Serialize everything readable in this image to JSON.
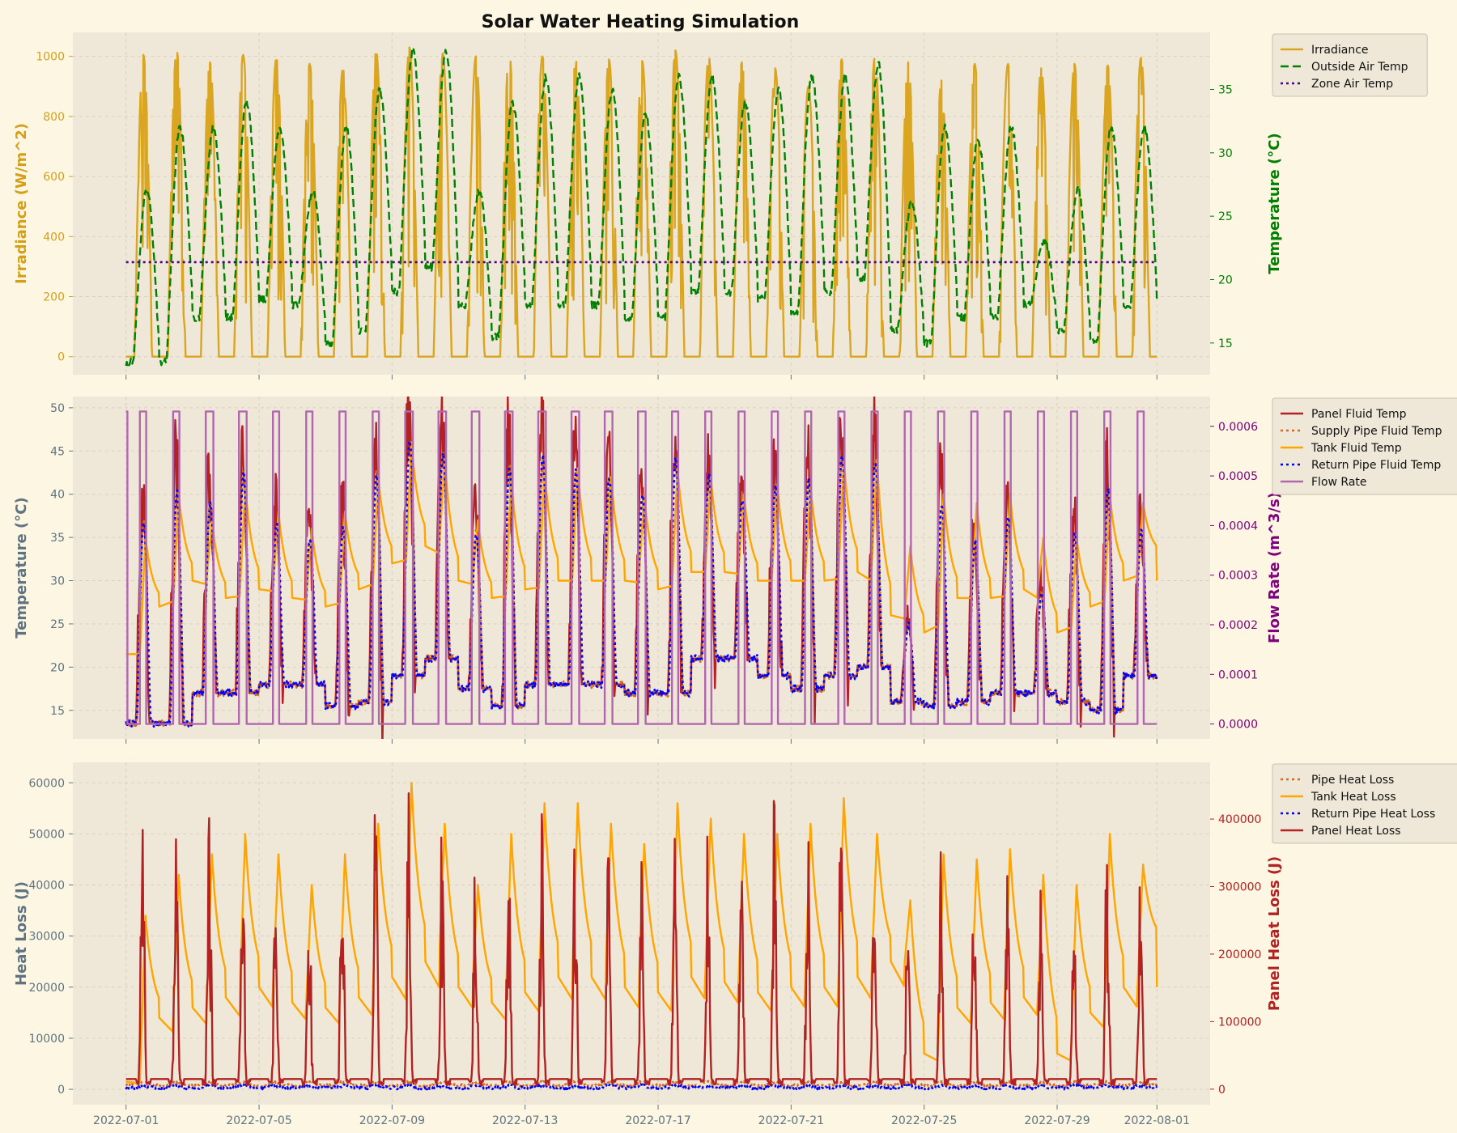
{
  "chart_data": {
    "title": "Solar Water Heating Simulation",
    "xtick_labels": [
      "2022-07-01",
      "2022-07-05",
      "2022-07-09",
      "2022-07-13",
      "2022-07-17",
      "2022-07-21",
      "2022-07-25",
      "2022-07-29",
      "2022-08-01"
    ],
    "xtick_days": [
      0,
      4,
      8,
      12,
      16,
      20,
      24,
      28,
      31
    ],
    "xlim_days": [
      -1.6,
      32.6
    ],
    "panels": [
      {
        "type": "line",
        "left_axis": {
          "label": "Irradiance (W/m^2)",
          "color": "#d4a017",
          "ylim": [
            -60,
            1080
          ],
          "ticks": [
            0,
            200,
            400,
            600,
            800,
            1000
          ]
        },
        "right_axis": {
          "label": "Temperature (°C)",
          "color": "#008000",
          "ylim": [
            12.5,
            39.5
          ],
          "ticks": [
            15,
            20,
            25,
            30,
            35
          ]
        },
        "series": [
          {
            "name": "Irradiance",
            "axis": "left",
            "color": "#daa520",
            "dash": "solid",
            "kind": "irradiance",
            "peaks": [
              1005,
              1020,
              980,
              1005,
              995,
              975,
              960,
              1015,
              1030,
              1010,
              1000,
              1015,
              1000,
              990,
              990,
              985,
              1020,
              1000,
              980,
              960,
              900,
              990,
              1000,
              980,
              920,
              975,
              975,
              960,
              975,
              970,
              995
            ]
          },
          {
            "name": "Outside Air Temp",
            "axis": "right",
            "color": "#008000",
            "dash": "dashed",
            "kind": "outside",
            "highs": [
              27,
              32,
              32,
              34,
              32,
              27,
              32,
              35,
              38,
              38,
              27,
              34,
              36,
              36,
              35,
              33,
              36,
              36,
              34,
              35,
              36,
              36,
              37,
              26,
              32,
              31,
              32,
              23,
              27,
              32,
              32
            ],
            "lows": [
              13.5,
              13.5,
              17,
              17,
              18.5,
              18,
              15,
              16,
              19,
              21,
              18,
              15.5,
              18,
              18,
              18,
              17,
              17,
              19,
              19,
              18.5,
              17.5,
              19,
              20,
              16,
              15,
              17,
              17,
              18,
              16,
              15,
              18
            ]
          },
          {
            "name": "Zone Air Temp",
            "axis": "left",
            "color": "#4b0082",
            "dash": "dotted",
            "kind": "constant",
            "value": 315
          }
        ],
        "legend": {
          "position": "outside-right-top"
        }
      },
      {
        "type": "line",
        "left_axis": {
          "label": "Temperature (°C)",
          "color": "#5f7380",
          "ylim": [
            11.7,
            51.3
          ],
          "ticks": [
            15,
            20,
            25,
            30,
            35,
            40,
            45,
            50
          ]
        },
        "right_axis": {
          "label": "Flow Rate (m^3/s)",
          "color": "#800080",
          "ylim": [
            -3e-05,
            0.00066
          ],
          "ticks": [
            0.0,
            0.0001,
            0.0002,
            0.0003,
            0.0004,
            0.0005,
            0.0006
          ]
        },
        "series": [
          {
            "name": "Panel Fluid Temp",
            "axis": "left",
            "color": "#b22222",
            "dash": "solid",
            "kind": "panel",
            "highs": [
              40,
              44,
              42,
              46,
              39,
              37,
              39,
              46,
              50,
              48,
              38,
              47,
              48,
              46,
              45,
              43,
              48,
              45,
              42,
              44,
              45,
              48,
              47,
              26,
              42,
              37,
              40,
              30,
              38,
              44,
              38
            ],
            "lows": [
              13.5,
              13.5,
              17,
              17,
              18,
              18,
              15.5,
              16,
              19,
              21,
              17.5,
              15.5,
              18,
              18,
              18,
              17,
              17,
              21,
              21,
              19,
              17.5,
              19,
              20,
              16,
              15.5,
              16,
              17,
              17,
              16,
              15,
              19
            ]
          },
          {
            "name": "Supply Pipe Fluid Temp",
            "axis": "left",
            "color": "#d2691e",
            "dash": "dotted",
            "kind": "supply"
          },
          {
            "name": "Tank Fluid Temp",
            "axis": "left",
            "color": "#ffa500",
            "dash": "solid",
            "kind": "tank",
            "highs": [
              35,
              40,
              37,
              41,
              38,
              36,
              38,
              42,
              46,
              44,
              37,
              42,
              43,
              43,
              42,
              40,
              43,
              42,
              40,
              41,
              41,
              44,
              44,
              34,
              40,
              39,
              40,
              35,
              35,
              40,
              39
            ],
            "ends": [
              27,
              30,
              28,
              29,
              28,
              27,
              29,
              32,
              34,
              30,
              28,
              29,
              30,
              30,
              30,
              29,
              31,
              31,
              30,
              30,
              30,
              31,
              26,
              24,
              28,
              28,
              29,
              24,
              27,
              30,
              32.8
            ]
          },
          {
            "name": "Return Pipe Fluid Temp",
            "axis": "left",
            "color": "#0000ff",
            "dash": "dotted",
            "kind": "return"
          },
          {
            "name": "Flow Rate",
            "axis": "right",
            "color": "#b266b2",
            "dash": "solid",
            "kind": "flow",
            "on_value": 0.00063,
            "off_value": 0.0
          }
        ],
        "legend": {
          "position": "outside-right-top"
        }
      },
      {
        "type": "line",
        "left_axis": {
          "label": "Heat Loss (J)",
          "color": "#5f7380",
          "ylim": [
            -3000,
            64000
          ],
          "ticks": [
            0,
            10000,
            20000,
            30000,
            40000,
            50000,
            60000
          ]
        },
        "right_axis": {
          "label": "Panel Heat Loss (J)",
          "color": "#b22222",
          "ylim": [
            -23000,
            484000
          ],
          "ticks": [
            0,
            100000,
            200000,
            300000,
            400000
          ]
        },
        "series": [
          {
            "name": "Pipe Heat Loss",
            "axis": "left",
            "color": "#d2691e",
            "dash": "dotted",
            "kind": "pipeloss"
          },
          {
            "name": "Tank Heat Loss",
            "axis": "left",
            "color": "#ffa500",
            "dash": "solid",
            "kind": "tankloss",
            "highs": [
              34000,
              42000,
              46000,
              50000,
              46000,
              40000,
              46000,
              52000,
              60000,
              52000,
              40000,
              50000,
              56000,
              56000,
              52000,
              48000,
              56000,
              53000,
              50000,
              50000,
              52000,
              57000,
              50000,
              37000,
              46000,
              45000,
              47000,
              42000,
              40000,
              50000,
              44000
            ],
            "ends": [
              14000,
              16000,
              18000,
              20000,
              17000,
              16000,
              18000,
              22000,
              25000,
              20000,
              17000,
              19000,
              22000,
              22000,
              20000,
              19000,
              22000,
              21000,
              19000,
              20000,
              20000,
              22000,
              25000,
              7000,
              16000,
              17000,
              18000,
              7000,
              15000,
              20000,
              28500
            ]
          },
          {
            "name": "Return Pipe Heat Loss",
            "axis": "left",
            "color": "#0000ff",
            "dash": "dotted",
            "kind": "returnloss"
          },
          {
            "name": "Panel Heat Loss",
            "axis": "right",
            "color": "#b22222",
            "dash": "solid",
            "kind": "panelloss",
            "peaks": [
              460000,
              400000,
              420000,
              470000,
              380000,
              360000,
              400000,
              440000,
              460000,
              420000,
              360000,
              410000,
              430000,
              420000,
              400000,
              380000,
              430000,
              400000,
              380000,
              460000,
              400000,
              450000,
              390000,
              280000,
              400000,
              380000,
              380000,
              330000,
              360000,
              420000,
              380000
            ]
          }
        ],
        "legend": {
          "position": "outside-right-top"
        }
      }
    ]
  }
}
